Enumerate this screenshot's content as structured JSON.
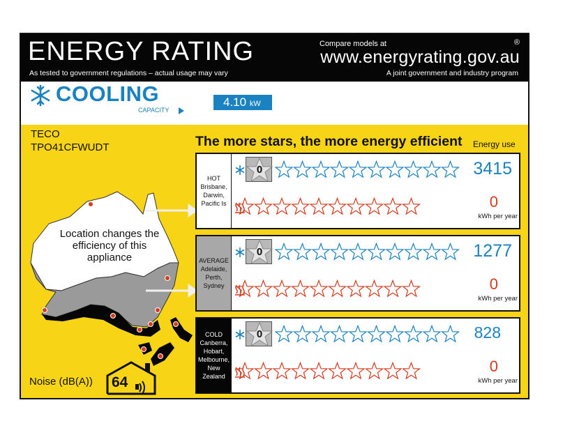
{
  "header": {
    "title": "ENERGY RATING",
    "subtitle": "As tested to government regulations – actual usage may vary",
    "compare": "Compare models at",
    "registered": "®",
    "url": "www.energyrating.gov.au",
    "joint": "A joint government and industry program"
  },
  "band": {
    "mode": "COOLING",
    "capacity_label": "CAPACITY",
    "capacity_value": "4.10",
    "capacity_unit": "kW"
  },
  "product": {
    "brand": "TECO",
    "model": "TPO41CFWUDT"
  },
  "headline": "The more stars, the more energy efficient",
  "energy_use_label": "Energy use",
  "map_text": "Location changes the efficiency of this appliance",
  "noise": {
    "label": "Noise (dB(A))",
    "value": "64"
  },
  "zones": [
    {
      "key": "hot",
      "name": "HOT",
      "places": [
        "Brisbane,",
        "Darwin,",
        "Pacific Is"
      ],
      "cooling_stars": "0",
      "heating_stars": "0",
      "cooling_kwh": "3415",
      "heating_kwh": "0",
      "unit": "kWh per year"
    },
    {
      "key": "avg",
      "name": "AVERAGE",
      "places": [
        "Adelaide,",
        "Perth,",
        "Sydney"
      ],
      "cooling_stars": "0",
      "heating_stars": "0",
      "cooling_kwh": "1277",
      "heating_kwh": "0",
      "unit": "kWh per year"
    },
    {
      "key": "cold",
      "name": "COLD",
      "places": [
        "Canberra,",
        "Hobart,",
        "Melbourne,",
        "New Zealand"
      ],
      "cooling_stars": "0",
      "heating_stars": "0",
      "cooling_kwh": "828",
      "heating_kwh": "0",
      "unit": "kWh per year"
    }
  ],
  "colors": {
    "label_yellow": "#f7d415",
    "cool_blue": "#1a82c0",
    "heat_red": "#d63a1e",
    "header_black": "#060606",
    "hot_zone": "#ffffff",
    "avg_zone": "#a8a8a8",
    "cold_zone": "#060606"
  },
  "icons": {
    "cool": "snowflake-icon",
    "heat": "heat-waves-icon",
    "noise": "house-sound-icon",
    "cap": "arrow-right-icon"
  }
}
